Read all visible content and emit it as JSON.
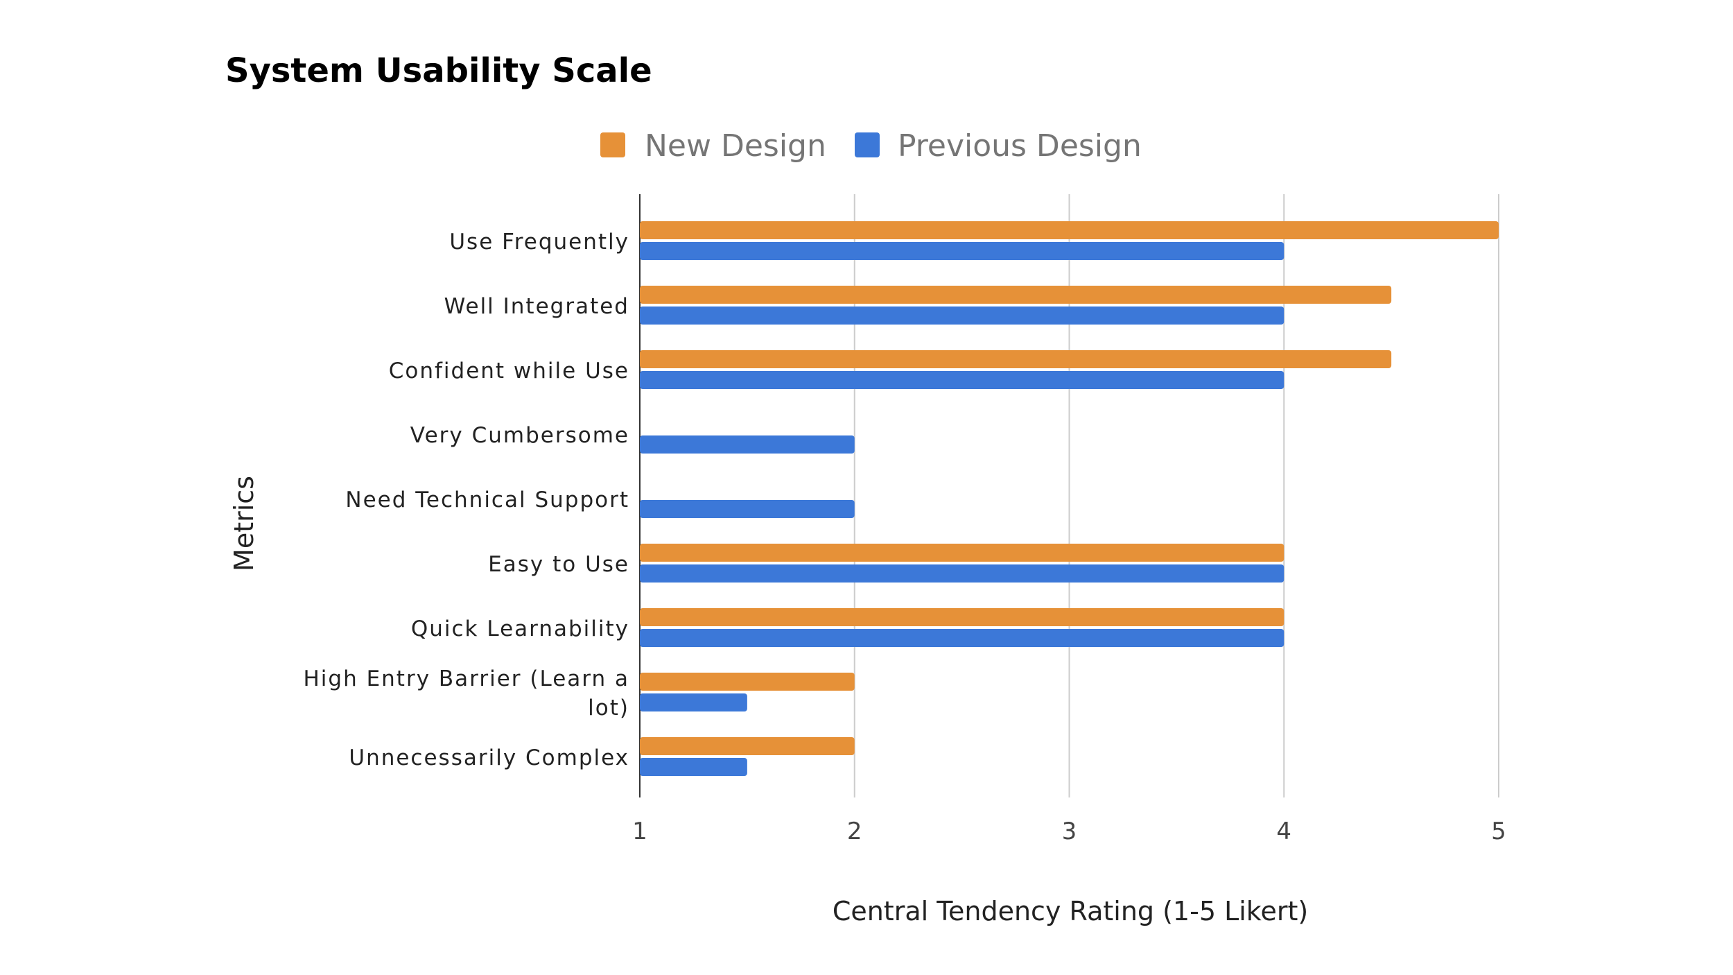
{
  "chart_data": {
    "type": "bar",
    "orientation": "horizontal",
    "title": "System Usability Scale",
    "xlabel": "Central Tendency Rating (1-5 Likert)",
    "ylabel": "Metrics",
    "xlim": [
      1,
      5
    ],
    "x_ticks": [
      "1",
      "2",
      "3",
      "4",
      "5"
    ],
    "grid": true,
    "legend_position": "top",
    "categories": [
      [
        "Use Frequently"
      ],
      [
        "Well Integrated"
      ],
      [
        "Confident while Use"
      ],
      [
        "Very Cumbersome"
      ],
      [
        "Need Technical Support"
      ],
      [
        "Easy to Use"
      ],
      [
        "Quick Learnability"
      ],
      [
        "High Entry Barrier (Learn a",
        "lot)"
      ],
      [
        "Unnecessarily Complex"
      ]
    ],
    "series": [
      {
        "name": "New Design",
        "color": "#e69138",
        "values": [
          5,
          4.5,
          4.5,
          1,
          1,
          4,
          4,
          2,
          2
        ]
      },
      {
        "name": "Previous Design",
        "color": "#3c78d8",
        "values": [
          4,
          4,
          4,
          2,
          2,
          4,
          4,
          1.5,
          1.5
        ]
      }
    ]
  }
}
